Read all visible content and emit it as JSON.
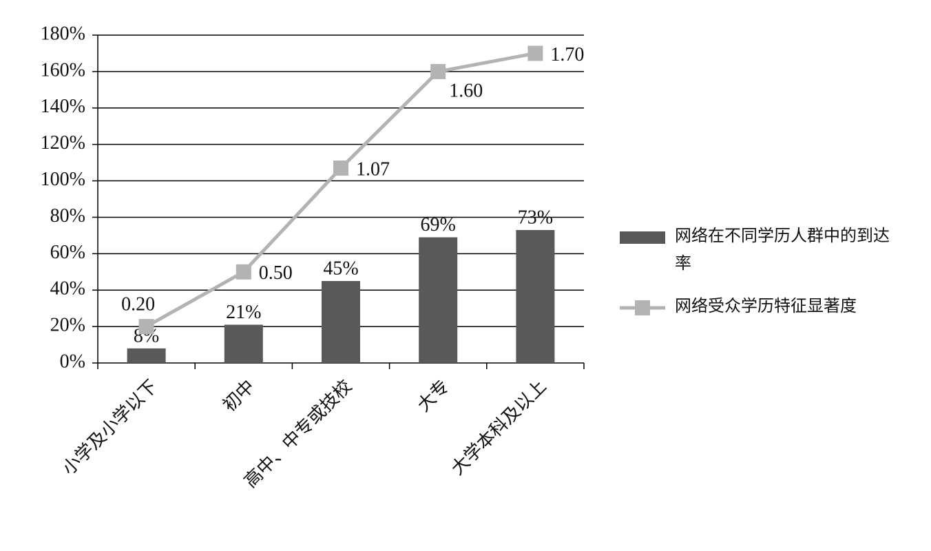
{
  "chart_data": {
    "type": "combo",
    "categories": [
      "小学及小学以下",
      "初中",
      "高中、中专或技校",
      "大专",
      "大学本科及以上"
    ],
    "series": [
      {
        "name": "网络在不同学历人群中的到达率",
        "type": "bar",
        "color": "#595959",
        "values": [
          8,
          21,
          45,
          69,
          73
        ],
        "value_labels": [
          "8%",
          "21%",
          "45%",
          "69%",
          "73%"
        ]
      },
      {
        "name": "网络受众学历特征显著度",
        "type": "line",
        "color": "#b3b3b3",
        "values": [
          20,
          50,
          107,
          160,
          170
        ],
        "value_labels": [
          "0.20",
          "0.50",
          "1.07",
          "1.60",
          "1.70"
        ]
      }
    ],
    "ylim": [
      0,
      180
    ],
    "yticks": [
      {
        "value": 0,
        "label": "0%"
      },
      {
        "value": 20,
        "label": "20%"
      },
      {
        "value": 40,
        "label": "40%"
      },
      {
        "value": 60,
        "label": "60%"
      },
      {
        "value": 80,
        "label": "80%"
      },
      {
        "value": 100,
        "label": "100%"
      },
      {
        "value": 120,
        "label": "120%"
      },
      {
        "value": 140,
        "label": "140%"
      },
      {
        "value": 160,
        "label": "160%"
      },
      {
        "value": 180,
        "label": "180%"
      }
    ],
    "grid": true,
    "legend": "right"
  }
}
